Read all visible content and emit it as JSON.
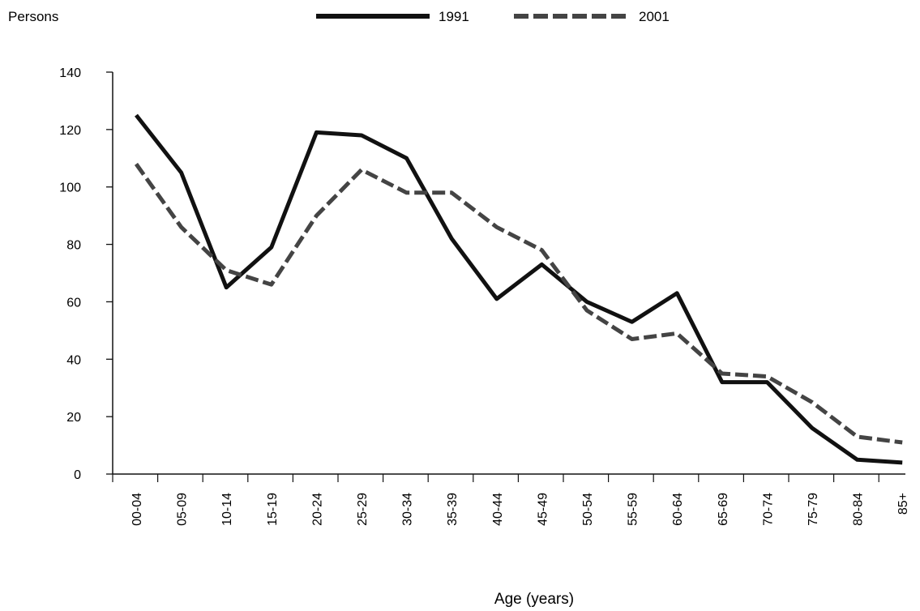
{
  "chart_data": {
    "type": "line",
    "ylabel": "Persons",
    "xlabel": "Age (years)",
    "ylim": [
      0,
      140
    ],
    "yticks": [
      0,
      20,
      40,
      60,
      80,
      100,
      120,
      140
    ],
    "grid": false,
    "legend_position": "top-center",
    "categories": [
      "00-04",
      "05-09",
      "10-14",
      "15-19",
      "20-24",
      "25-29",
      "30-34",
      "35-39",
      "40-44",
      "45-49",
      "50-54",
      "55-59",
      "60-64",
      "65-69",
      "70-74",
      "75-79",
      "80-84",
      "85+"
    ],
    "series": [
      {
        "name": "1991",
        "style": "solid",
        "color": "#111111",
        "values": [
          125,
          105,
          65,
          79,
          119,
          118,
          110,
          82,
          61,
          73,
          60,
          53,
          63,
          32,
          32,
          16,
          5,
          4
        ]
      },
      {
        "name": "2001",
        "style": "dashed",
        "color": "#444444",
        "values": [
          108,
          86,
          71,
          66,
          90,
          106,
          98,
          98,
          86,
          78,
          57,
          47,
          49,
          35,
          34,
          25,
          13,
          11
        ]
      }
    ]
  }
}
